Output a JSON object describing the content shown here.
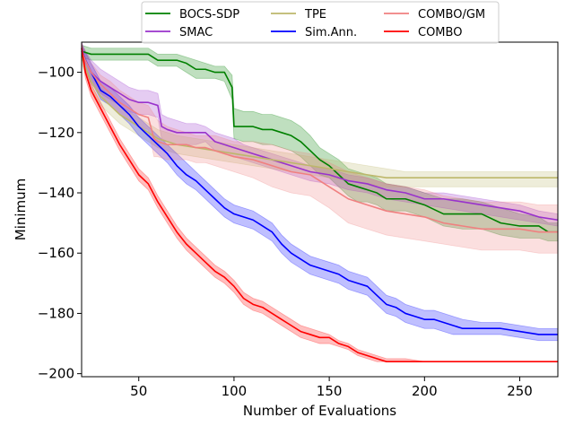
{
  "chart_data": {
    "type": "line",
    "title": "",
    "xlabel": "Number of Evaluations",
    "ylabel": "Minimum",
    "xlim": [
      20,
      270
    ],
    "ylim": [
      -201,
      -90
    ],
    "xticks": [
      50,
      100,
      150,
      200,
      250
    ],
    "yticks": [
      -100,
      -120,
      -140,
      -160,
      -180,
      -200
    ],
    "grid": false,
    "legend_position": "top-center",
    "series": [
      {
        "name": "BOCS-SDP",
        "color": "#008000",
        "x": [
          20,
          25,
          30,
          40,
          50,
          55,
          60,
          65,
          70,
          75,
          80,
          85,
          90,
          95,
          99,
          100,
          105,
          110,
          115,
          120,
          125,
          130,
          135,
          140,
          145,
          150,
          155,
          160,
          165,
          170,
          175,
          180,
          190,
          200,
          210,
          220,
          230,
          240,
          250,
          260,
          265,
          270
        ],
        "y": [
          -93,
          -94,
          -94,
          -94,
          -94,
          -94,
          -96,
          -96,
          -96,
          -97,
          -99,
          -99,
          -100,
          -100,
          -105,
          -118,
          -118,
          -118,
          -119,
          -119,
          -120,
          -121,
          -123,
          -126,
          -129,
          -131,
          -134,
          -137,
          -138,
          -139,
          -140,
          -142,
          -142,
          -144,
          -147,
          -147,
          -147,
          -150,
          -151,
          -151,
          -153,
          -153
        ],
        "upper": [
          -91,
          -92,
          -92,
          -92,
          -92,
          -92,
          -94,
          -94,
          -94,
          -95,
          -96,
          -97,
          -98,
          -98,
          -101,
          -112,
          -113,
          -113,
          -114,
          -114,
          -115,
          -116,
          -118,
          -121,
          -125,
          -127,
          -129,
          -132,
          -133,
          -134,
          -135,
          -137,
          -138,
          -140,
          -142,
          -142,
          -143,
          -145,
          -147,
          -148,
          -150,
          -150
        ],
        "lower": [
          -95,
          -96,
          -96,
          -96,
          -96,
          -96,
          -98,
          -98,
          -98,
          -100,
          -102,
          -102,
          -102,
          -103,
          -109,
          -122,
          -123,
          -123,
          -124,
          -124,
          -125,
          -126,
          -128,
          -131,
          -134,
          -135,
          -138,
          -141,
          -143,
          -143,
          -144,
          -146,
          -146,
          -148,
          -151,
          -152,
          -152,
          -154,
          -155,
          -155,
          -156,
          -156
        ]
      },
      {
        "name": "SMAC",
        "color": "#9932cc",
        "x": [
          20,
          22,
          25,
          30,
          35,
          40,
          45,
          50,
          55,
          60,
          62,
          65,
          70,
          75,
          80,
          85,
          90,
          95,
          100,
          105,
          110,
          115,
          120,
          130,
          140,
          150,
          160,
          170,
          180,
          190,
          200,
          210,
          220,
          230,
          240,
          250,
          260,
          270
        ],
        "y": [
          -92,
          -96,
          -100,
          -103,
          -105,
          -107,
          -109,
          -110,
          -110,
          -111,
          -118,
          -119,
          -120,
          -120,
          -120,
          -120,
          -123,
          -124,
          -125,
          -126,
          -127,
          -128,
          -129,
          -131,
          -133,
          -134,
          -136,
          -137,
          -139,
          -140,
          -142,
          -142,
          -143,
          -144,
          -145,
          -146,
          -148,
          -149
        ],
        "upper": [
          -90,
          -93,
          -96,
          -99,
          -101,
          -103,
          -105,
          -106,
          -106,
          -107,
          -114,
          -115,
          -116,
          -117,
          -117,
          -118,
          -120,
          -121,
          -122,
          -124,
          -125,
          -126,
          -127,
          -129,
          -131,
          -132,
          -134,
          -135,
          -137,
          -138,
          -140,
          -140,
          -141,
          -142,
          -143,
          -144,
          -146,
          -147
        ],
        "lower": [
          -94,
          -99,
          -104,
          -107,
          -109,
          -111,
          -113,
          -114,
          -114,
          -115,
          -122,
          -123,
          -124,
          -124,
          -124,
          -123,
          -126,
          -127,
          -128,
          -129,
          -130,
          -131,
          -132,
          -134,
          -136,
          -137,
          -139,
          -140,
          -142,
          -143,
          -144,
          -145,
          -146,
          -147,
          -148,
          -149,
          -150,
          -151
        ]
      },
      {
        "name": "TPE",
        "color": "#bdb76b",
        "x": [
          20,
          25,
          30,
          40,
          50,
          60,
          70,
          80,
          90,
          100,
          110,
          120,
          130,
          140,
          150,
          160,
          170,
          180,
          190,
          200,
          230,
          270
        ],
        "y": [
          -95,
          -103,
          -108,
          -114,
          -118,
          -122,
          -124,
          -125,
          -126,
          -127,
          -128,
          -129,
          -130,
          -131,
          -132,
          -133,
          -134,
          -135,
          -135,
          -135,
          -135,
          -135
        ],
        "upper": [
          -93,
          -100,
          -105,
          -111,
          -115,
          -119,
          -121,
          -122,
          -123,
          -124,
          -125,
          -126,
          -127,
          -128,
          -129,
          -130,
          -131,
          -132,
          -133,
          -133,
          -133,
          -133
        ],
        "lower": [
          -97,
          -106,
          -111,
          -117,
          -121,
          -125,
          -127,
          -128,
          -129,
          -130,
          -131,
          -132,
          -133,
          -134,
          -135,
          -136,
          -137,
          -138,
          -138,
          -138,
          -138,
          -138
        ]
      },
      {
        "name": "Sim.Ann.",
        "color": "#0000ff",
        "x": [
          20,
          25,
          30,
          35,
          40,
          45,
          50,
          55,
          60,
          65,
          70,
          75,
          80,
          85,
          90,
          95,
          100,
          105,
          110,
          115,
          120,
          125,
          130,
          135,
          140,
          145,
          150,
          155,
          160,
          165,
          170,
          175,
          180,
          185,
          190,
          195,
          200,
          205,
          210,
          215,
          220,
          230,
          240,
          250,
          260,
          270
        ],
        "y": [
          -93,
          -100,
          -106,
          -108,
          -111,
          -114,
          -118,
          -121,
          -124,
          -127,
          -131,
          -134,
          -136,
          -139,
          -142,
          -145,
          -147,
          -148,
          -149,
          -151,
          -153,
          -157,
          -160,
          -162,
          -164,
          -165,
          -166,
          -167,
          -169,
          -170,
          -171,
          -174,
          -177,
          -178,
          -180,
          -181,
          -182,
          -182,
          -183,
          -184,
          -185,
          -185,
          -185,
          -186,
          -187,
          -187
        ],
        "upper": [
          -91,
          -97,
          -103,
          -105,
          -108,
          -111,
          -115,
          -118,
          -121,
          -124,
          -127,
          -130,
          -133,
          -136,
          -139,
          -142,
          -144,
          -145,
          -146,
          -148,
          -150,
          -154,
          -157,
          -159,
          -161,
          -162,
          -163,
          -164,
          -166,
          -167,
          -168,
          -171,
          -174,
          -175,
          -177,
          -178,
          -179,
          -179,
          -180,
          -181,
          -182,
          -183,
          -183,
          -184,
          -185,
          -185
        ],
        "lower": [
          -95,
          -103,
          -109,
          -111,
          -114,
          -117,
          -121,
          -124,
          -127,
          -130,
          -134,
          -137,
          -139,
          -142,
          -145,
          -148,
          -150,
          -151,
          -152,
          -154,
          -156,
          -160,
          -163,
          -165,
          -167,
          -168,
          -169,
          -170,
          -172,
          -173,
          -174,
          -177,
          -180,
          -181,
          -183,
          -184,
          -185,
          -185,
          -186,
          -187,
          -187,
          -187,
          -187,
          -188,
          -189,
          -189
        ]
      },
      {
        "name": "COMBO/GM",
        "color": "#f08080",
        "x": [
          20,
          22,
          25,
          30,
          35,
          40,
          45,
          50,
          55,
          58,
          60,
          65,
          70,
          75,
          80,
          85,
          90,
          95,
          100,
          110,
          120,
          130,
          140,
          150,
          160,
          170,
          180,
          190,
          200,
          210,
          220,
          230,
          240,
          250,
          260,
          270
        ],
        "y": [
          -93,
          -96,
          -100,
          -104,
          -107,
          -110,
          -112,
          -114,
          -115,
          -122,
          -123,
          -124,
          -124,
          -124,
          -125,
          -125,
          -126,
          -127,
          -128,
          -129,
          -131,
          -133,
          -134,
          -138,
          -142,
          -144,
          -146,
          -147,
          -148,
          -150,
          -151,
          -152,
          -152,
          -152,
          -153,
          -153
        ],
        "upper": [
          -91,
          -93,
          -97,
          -101,
          -103,
          -106,
          -108,
          -110,
          -111,
          -114,
          -116,
          -118,
          -119,
          -120,
          -121,
          -121,
          -121,
          -122,
          -123,
          -123,
          -124,
          -126,
          -127,
          -130,
          -133,
          -135,
          -137,
          -138,
          -139,
          -141,
          -142,
          -143,
          -143,
          -143,
          -144,
          -144
        ],
        "lower": [
          -95,
          -99,
          -103,
          -107,
          -111,
          -114,
          -116,
          -118,
          -119,
          -128,
          -128,
          -129,
          -129,
          -129,
          -130,
          -130,
          -131,
          -132,
          -133,
          -135,
          -138,
          -140,
          -141,
          -145,
          -150,
          -152,
          -154,
          -155,
          -156,
          -157,
          -158,
          -159,
          -159,
          -159,
          -160,
          -160
        ]
      },
      {
        "name": "COMBO",
        "color": "#ff0000",
        "x": [
          20,
          22,
          25,
          30,
          35,
          40,
          45,
          50,
          55,
          60,
          65,
          70,
          75,
          80,
          85,
          90,
          95,
          100,
          105,
          110,
          115,
          120,
          125,
          130,
          135,
          140,
          145,
          150,
          155,
          160,
          165,
          170,
          175,
          180,
          190,
          200,
          250,
          270
        ],
        "y": [
          -92,
          -100,
          -106,
          -112,
          -118,
          -124,
          -129,
          -134,
          -137,
          -143,
          -148,
          -153,
          -157,
          -160,
          -163,
          -166,
          -168,
          -171,
          -175,
          -177,
          -178,
          -180,
          -182,
          -184,
          -186,
          -187,
          -188,
          -188,
          -190,
          -191,
          -193,
          -194,
          -195,
          -196,
          -196,
          -196,
          -196,
          -196
        ],
        "upper": [
          -90,
          -98,
          -104,
          -110,
          -116,
          -122,
          -127,
          -132,
          -135,
          -141,
          -146,
          -151,
          -155,
          -158,
          -161,
          -164,
          -166,
          -169,
          -173,
          -175,
          -176,
          -178,
          -180,
          -182,
          -184,
          -185,
          -186,
          -187,
          -189,
          -190,
          -192,
          -193,
          -194,
          -195,
          -195,
          -196,
          -196,
          -196
        ],
        "lower": [
          -94,
          -102,
          -108,
          -114,
          -120,
          -126,
          -131,
          -136,
          -139,
          -145,
          -150,
          -155,
          -159,
          -162,
          -165,
          -168,
          -170,
          -173,
          -177,
          -179,
          -180,
          -182,
          -184,
          -186,
          -188,
          -189,
          -190,
          -190,
          -191,
          -192,
          -194,
          -195,
          -196,
          -196,
          -196,
          -196,
          -196,
          -196
        ]
      }
    ]
  }
}
